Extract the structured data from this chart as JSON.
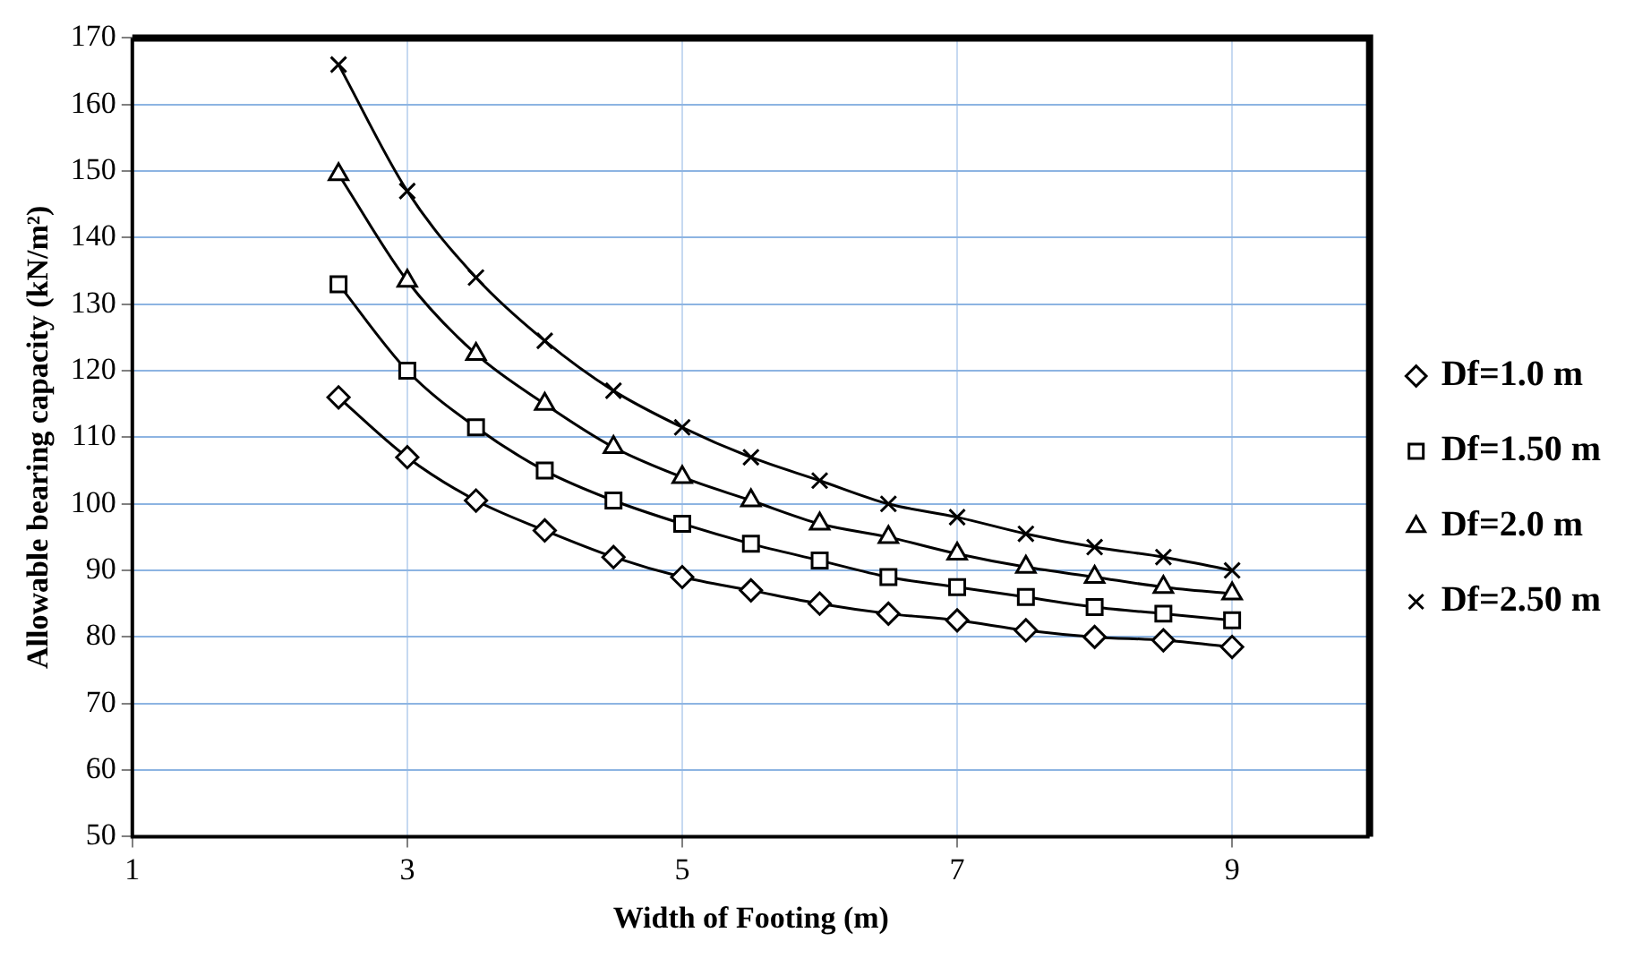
{
  "chart_data": {
    "type": "line",
    "xlabel": "Width of Footing (m)",
    "ylabel": "Allowable bearing capacity (kN/m²)",
    "x": [
      2.5,
      3,
      3.5,
      4,
      4.5,
      5,
      5.5,
      6,
      6.5,
      7,
      7.5,
      8,
      8.5,
      9
    ],
    "series": [
      {
        "name": "Df=1.0 m",
        "color": "#000000",
        "marker": "diamond",
        "values": [
          116,
          107,
          100.5,
          96,
          92,
          89,
          87,
          85,
          83.5,
          82.5,
          81,
          80,
          79.5,
          78.5
        ]
      },
      {
        "name": "Df=1.50 m",
        "color": "#000000",
        "marker": "square",
        "values": [
          133,
          120,
          111.5,
          105,
          100.5,
          97,
          94,
          91.5,
          89,
          87.5,
          86,
          84.5,
          83.5,
          82.5
        ]
      },
      {
        "name": "Df=2.0 m",
        "color": "#000000",
        "marker": "triangle",
        "values": [
          149.5,
          133.5,
          122.5,
          115,
          108.5,
          104,
          100.5,
          97,
          95,
          92.5,
          90.5,
          89,
          87.5,
          86.5
        ]
      },
      {
        "name": "Df=2.50 m",
        "color": "#000000",
        "marker": "cross",
        "values": [
          166,
          147,
          134,
          124.5,
          117,
          111.5,
          107,
          103.5,
          100,
          98,
          95.5,
          93.5,
          92,
          90
        ]
      }
    ],
    "xlim": [
      1,
      10
    ],
    "xticks": [
      1,
      3,
      5,
      7,
      9
    ],
    "ylim": [
      50,
      170
    ],
    "yticks": [
      50,
      60,
      70,
      80,
      90,
      100,
      110,
      120,
      130,
      140,
      150,
      160,
      170
    ],
    "grid": true,
    "legend": "right"
  }
}
